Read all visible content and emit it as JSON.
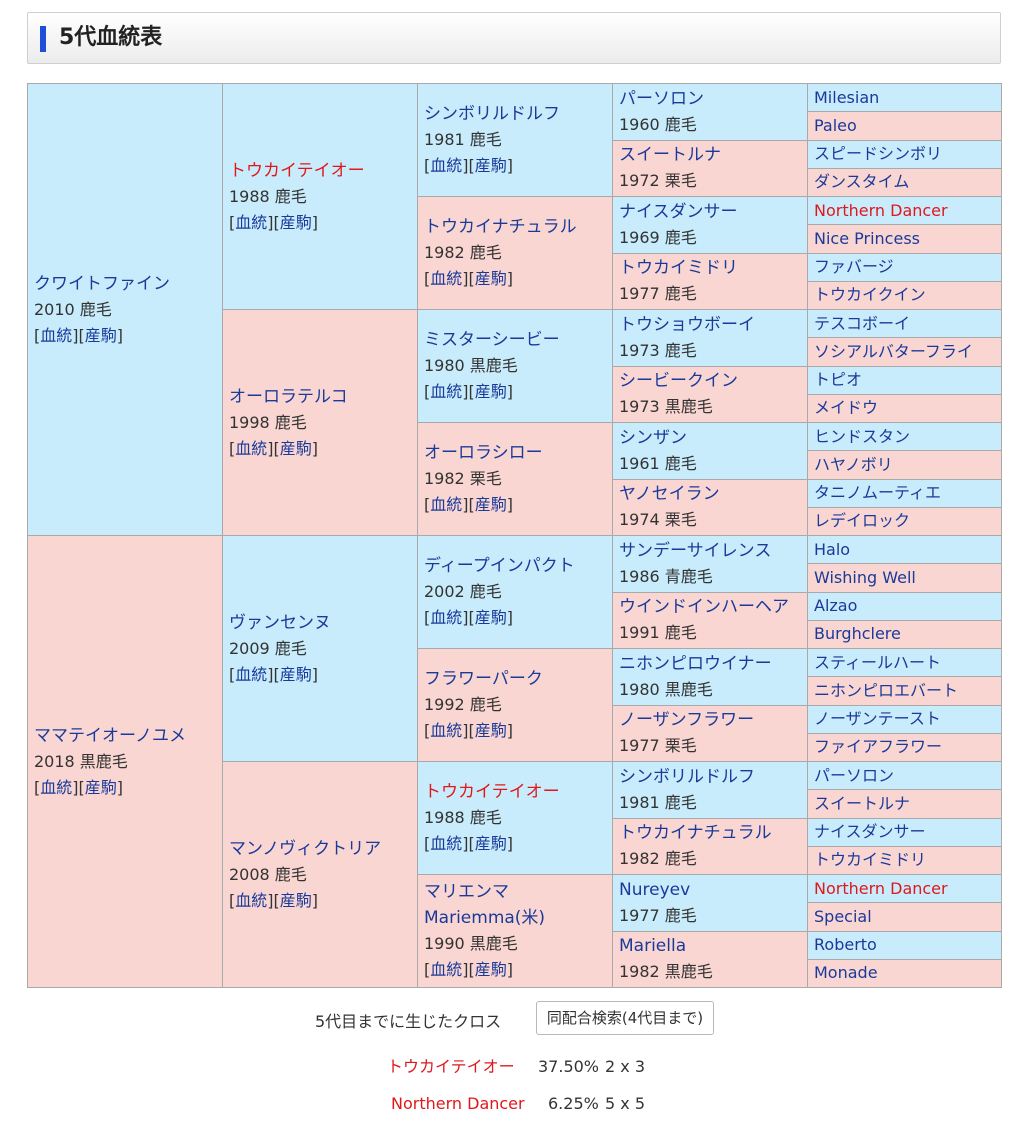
{
  "header": {
    "title": "5代血統表"
  },
  "links": {
    "l1": "血統",
    "l2": "産駒"
  },
  "pedigree": {
    "g1": [
      {
        "name": "クワイトファイン",
        "info": "2010 鹿毛"
      },
      {
        "name": "ママテイオーノユメ",
        "info": "2018 黒鹿毛"
      }
    ],
    "g2": [
      {
        "name": "トウカイテイオー",
        "info": "1988 鹿毛"
      },
      {
        "name": "オーロラテルコ",
        "info": "1998 鹿毛"
      },
      {
        "name": "ヴァンセンヌ",
        "info": "2009 鹿毛"
      },
      {
        "name": "マンノヴィクトリア",
        "info": "2008 鹿毛"
      }
    ],
    "g3": [
      {
        "name": "シンボリルドルフ",
        "info": "1981 鹿毛"
      },
      {
        "name": "トウカイナチュラル",
        "info": "1982 鹿毛"
      },
      {
        "name": "ミスターシービー",
        "info": "1980 黒鹿毛"
      },
      {
        "name": "オーロラシロー",
        "info": "1982 栗毛"
      },
      {
        "name": "ディープインパクト",
        "info": "2002 鹿毛"
      },
      {
        "name": "フラワーパーク",
        "info": "1992 鹿毛"
      },
      {
        "name": "トウカイテイオー",
        "info": "1988 鹿毛"
      },
      {
        "name": "マリエンマ",
        "name2": "Mariemma(米)",
        "info": "1990 黒鹿毛"
      }
    ],
    "g4": [
      {
        "name": "パーソロン",
        "info": "1960 鹿毛"
      },
      {
        "name": "スイートルナ",
        "info": "1972 栗毛"
      },
      {
        "name": "ナイスダンサー",
        "info": "1969 鹿毛"
      },
      {
        "name": "トウカイミドリ",
        "info": "1977 鹿毛"
      },
      {
        "name": "トウショウボーイ",
        "info": "1973 鹿毛"
      },
      {
        "name": "シービークイン",
        "info": "1973 黒鹿毛"
      },
      {
        "name": "シンザン",
        "info": "1961 鹿毛"
      },
      {
        "name": "ヤノセイラン",
        "info": "1974 栗毛"
      },
      {
        "name": "サンデーサイレンス",
        "info": "1986 青鹿毛"
      },
      {
        "name": "ウインドインハーヘア",
        "info": "1991 鹿毛"
      },
      {
        "name": "ニホンピロウイナー",
        "info": "1980 黒鹿毛"
      },
      {
        "name": "ノーザンフラワー",
        "info": "1977 栗毛"
      },
      {
        "name": "シンボリルドルフ",
        "info": "1981 鹿毛"
      },
      {
        "name": "トウカイナチュラル",
        "info": "1982 鹿毛"
      },
      {
        "name": "Nureyev",
        "info": "1977 鹿毛"
      },
      {
        "name": "Mariella",
        "info": "1982 黒鹿毛"
      }
    ],
    "g5": [
      "Milesian",
      "Paleo",
      "スピードシンボリ",
      "ダンスタイム",
      "Northern Dancer",
      "Nice Princess",
      "ファバージ",
      "トウカイクイン",
      "テスコボーイ",
      "ソシアルバターフライ",
      "トピオ",
      "メイドウ",
      "ヒンドスタン",
      "ハヤノボリ",
      "タニノムーティエ",
      "レデイロック",
      "Halo",
      "Wishing Well",
      "Alzao",
      "Burghclere",
      "スティールハート",
      "ニホンピロエバート",
      "ノーザンテースト",
      "ファイアフラワー",
      "パーソロン",
      "スイートルナ",
      "ナイスダンサー",
      "トウカイミドリ",
      "Northern Dancer",
      "Special",
      "Roberto",
      "Monade"
    ]
  },
  "cross": {
    "label": "5代目までに生じたクロス",
    "button": "同配合検索(4代目まで)",
    "items": [
      {
        "name": "トウカイテイオー",
        "pct": "37.50%",
        "gen": "2 x 3"
      },
      {
        "name": "Northern Dancer",
        "pct": "6.25%",
        "gen": "5 x 5"
      }
    ]
  },
  "colors": {
    "male_bg": "#c8ecfb",
    "female_bg": "#fad6d2",
    "link": "#1a3a9a",
    "highlight": "#e0181b",
    "header_bar": "#1e4fd6"
  }
}
